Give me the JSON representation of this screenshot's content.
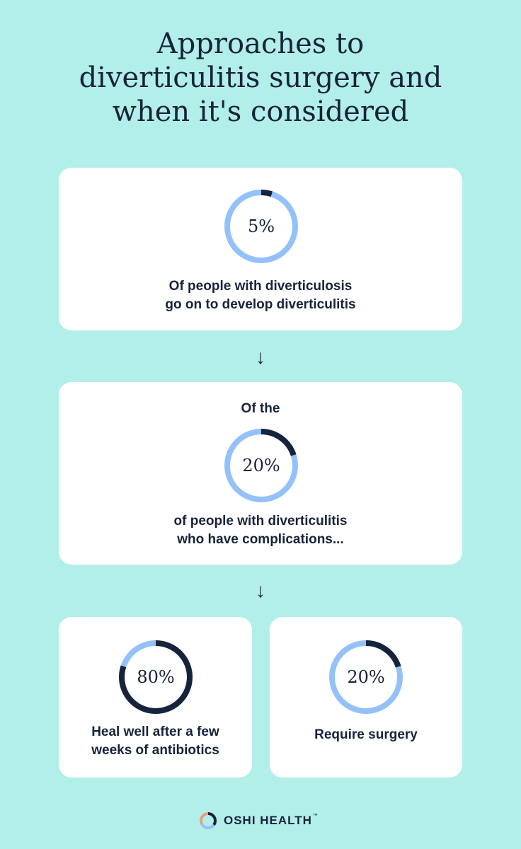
{
  "title": {
    "line1": "Approaches to",
    "line2": "diverticulitis surgery and",
    "line3": "when it's considered"
  },
  "colors": {
    "background": "#b2efe9",
    "card": "#ffffff",
    "ring_light": "#94c1fa",
    "ring_dark": "#17233a",
    "text": "#17233a"
  },
  "card1": {
    "percent_label": "5%",
    "percent": 5,
    "caption_line1": "Of people with diverticulosis",
    "caption_line2": "go on to develop diverticulitis"
  },
  "arrow_icon": "↓",
  "card2": {
    "intro": "Of the",
    "percent_label": "20%",
    "percent": 20,
    "caption_line1": "of people with diverticulitis",
    "caption_line2": "who have complications..."
  },
  "card3": {
    "percent_label": "80%",
    "percent": 80,
    "caption_line1": "Heal well after a few",
    "caption_line2": "weeks of antibiotics"
  },
  "card4": {
    "percent_label": "20%",
    "percent": 20,
    "caption_line1": "Require surgery"
  },
  "logo": {
    "text": "OSHI HEALTH",
    "trademark": "™",
    "icon": "ring-logo-icon"
  }
}
